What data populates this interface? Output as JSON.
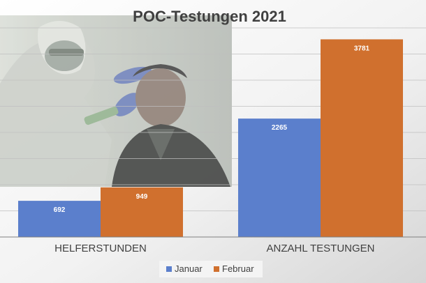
{
  "chart_data": {
    "type": "bar",
    "title": "POC-Testungen 2021",
    "categories": [
      "HELFERSTUNDEN",
      "ANZAHL TESTUNGEN"
    ],
    "series": [
      {
        "name": "Januar",
        "values": [
          692,
          2265
        ],
        "color": "#5B7FCC"
      },
      {
        "name": "Februar",
        "values": [
          949,
          3781
        ],
        "color": "#D0702E"
      }
    ],
    "ylim": [
      0,
      4000
    ],
    "grid": true,
    "legend": "bottom",
    "background_image": "covid-test-photo",
    "data_labels": true
  }
}
